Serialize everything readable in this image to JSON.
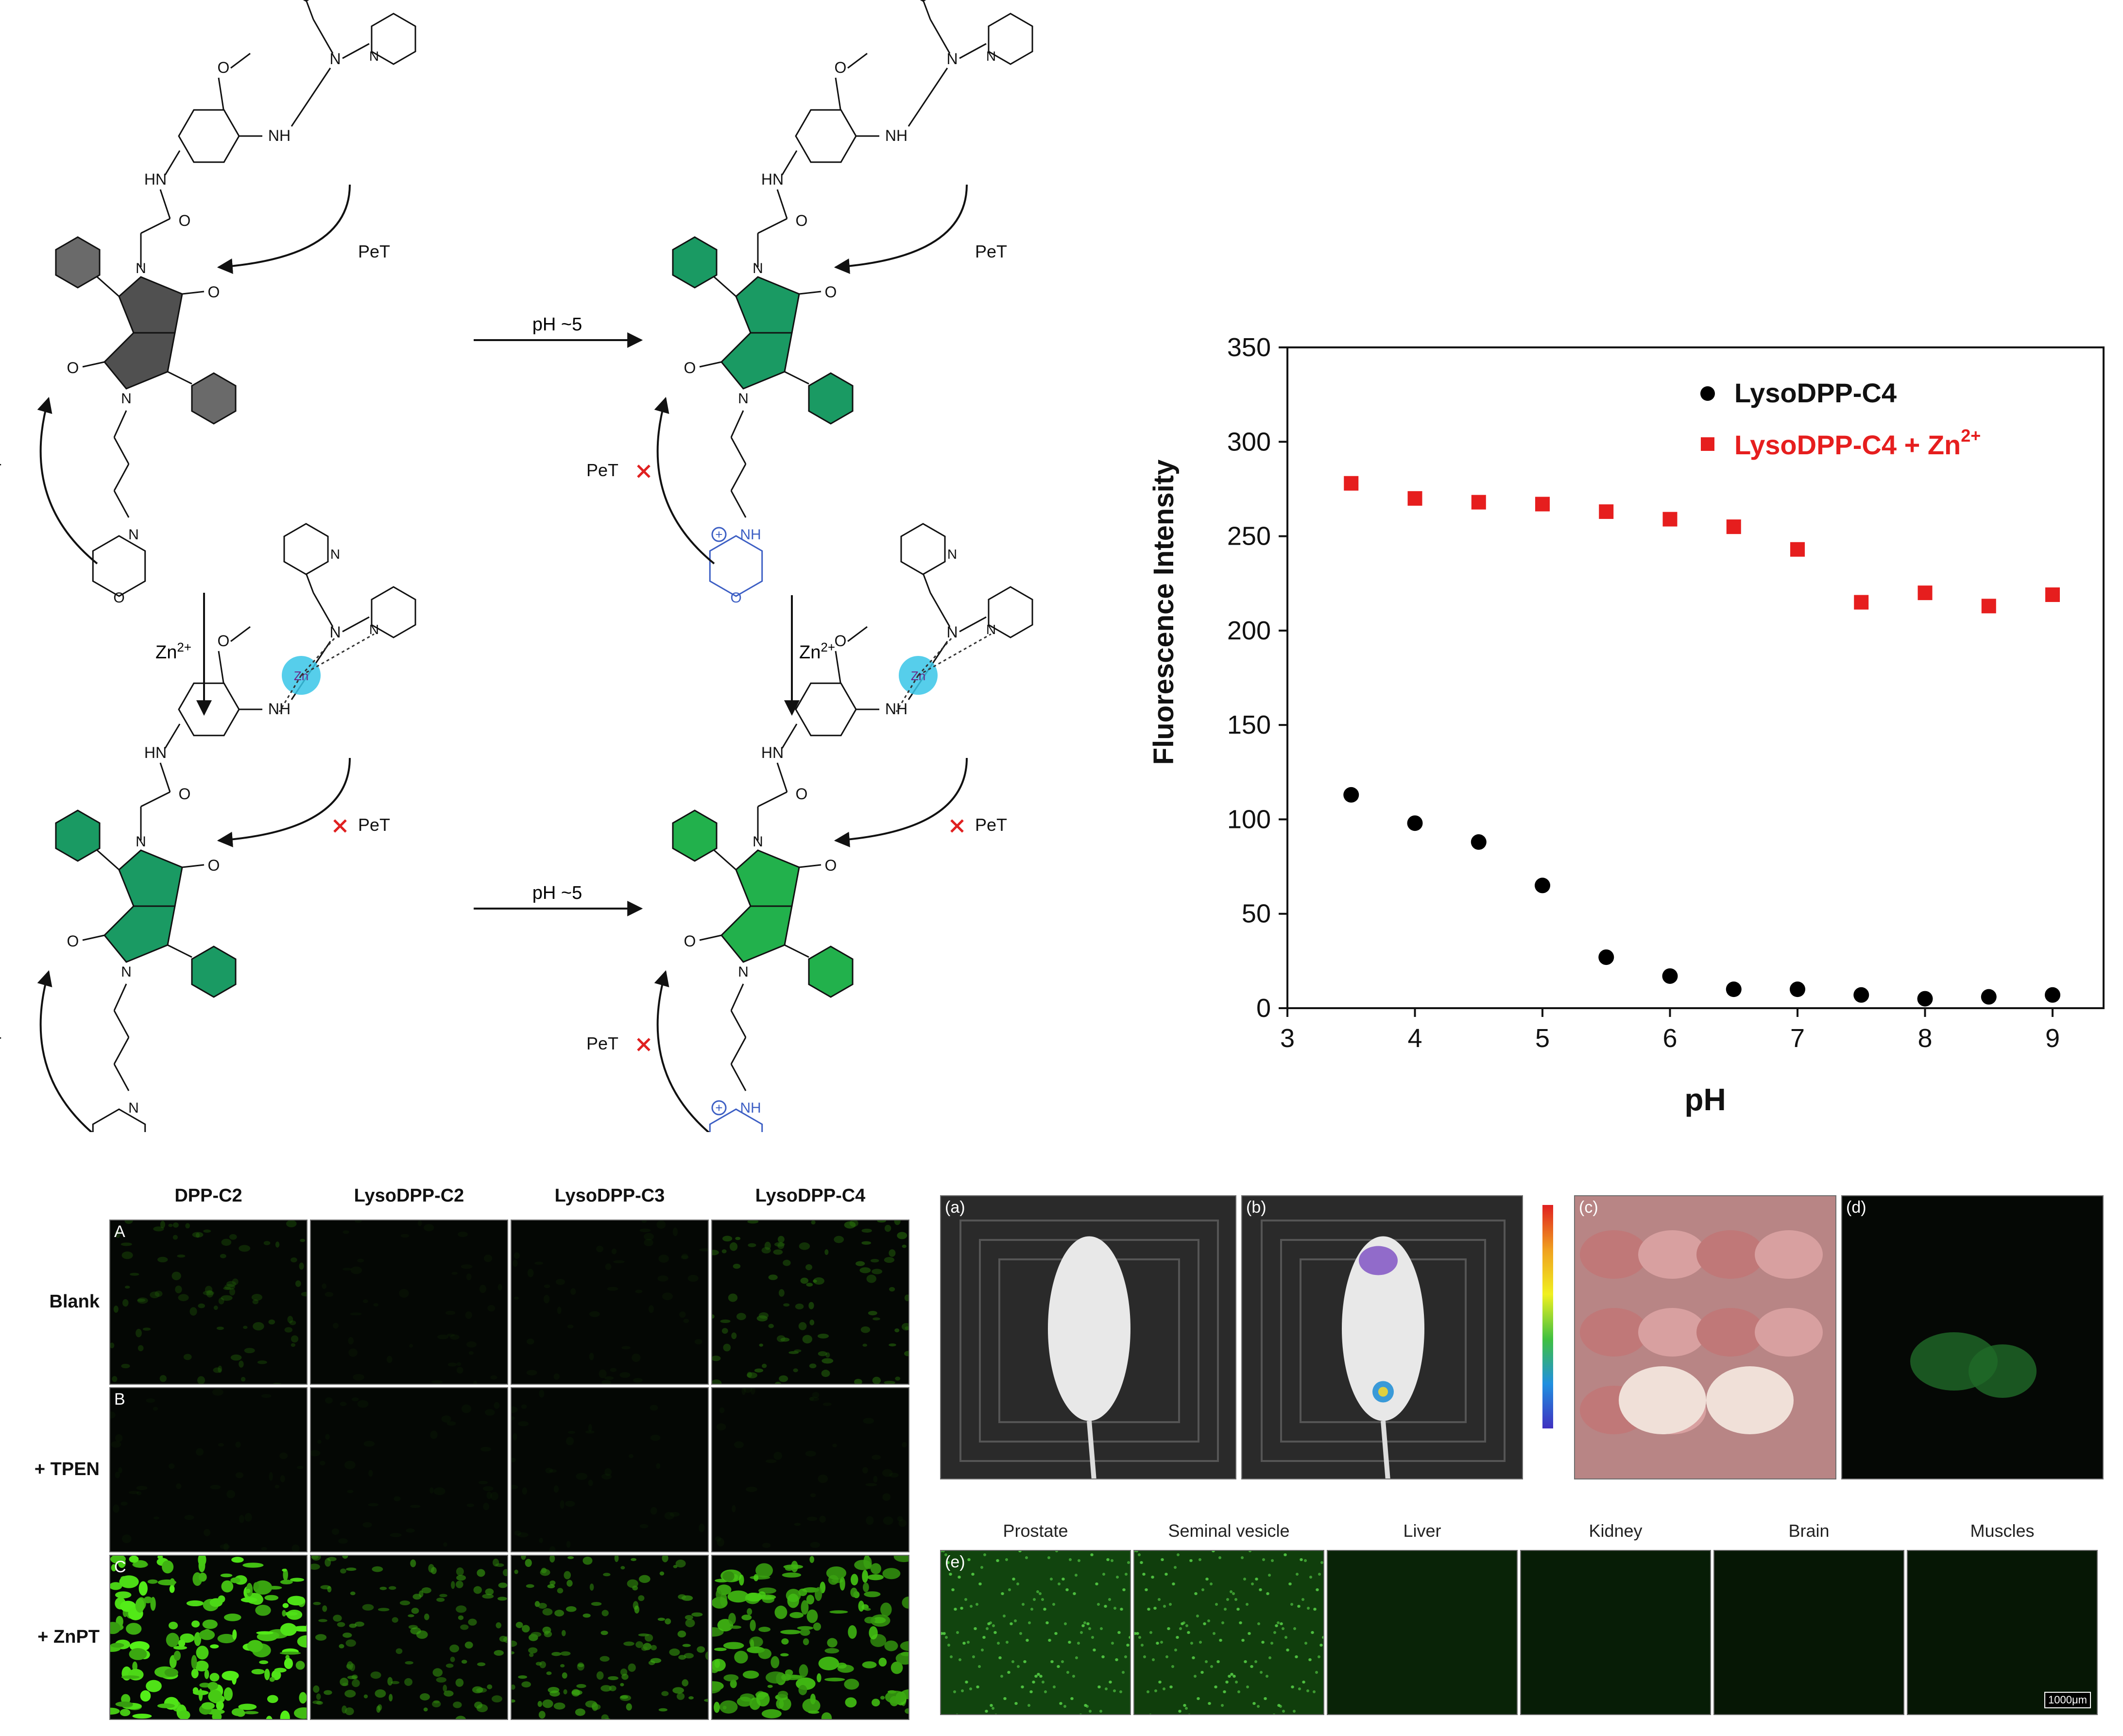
{
  "scheme": {
    "arrow_ph_top": "pH ~5",
    "arrow_ph_bottom": "pH ~5",
    "arrow_zn_left": "Zn2+",
    "arrow_zn_right": "Zn2+",
    "pet": "PeT",
    "atoms": {
      "n": "N",
      "nh": "NH",
      "hn": "HN",
      "o": "O",
      "nh_plus": "NH",
      "zn": "Zn"
    },
    "colors": {
      "core_off": "#505050",
      "core_on": "#1a9a63",
      "core_bright": "#22b14c",
      "protonated": "#3d5fc4",
      "block_mark": "#e02020",
      "zinc_ion": "#38c6e8"
    }
  },
  "chart_data": {
    "type": "scatter",
    "xlabel": "pH",
    "ylabel": "Fluorescence Intensity",
    "xlim": [
      3,
      9.4
    ],
    "ylim": [
      0,
      350
    ],
    "xticks": [
      3,
      4,
      5,
      6,
      7,
      8,
      9
    ],
    "yticks": [
      0,
      50,
      100,
      150,
      200,
      250,
      300,
      350
    ],
    "legend_position": "top-right",
    "series": [
      {
        "name": "LysoDPP-C4",
        "marker": "circle",
        "color": "#000000",
        "x": [
          3.5,
          4.0,
          4.5,
          5.0,
          5.5,
          6.0,
          6.5,
          7.0,
          7.5,
          8.0,
          8.5,
          9.0
        ],
        "y": [
          113,
          98,
          88,
          65,
          27,
          17,
          10,
          10,
          7,
          5,
          6,
          7
        ]
      },
      {
        "name": "LysoDPP-C4 + Zn2+",
        "marker": "square",
        "color": "#e61e1e",
        "x": [
          3.5,
          4.0,
          4.5,
          5.0,
          5.5,
          6.0,
          6.5,
          7.0,
          7.5,
          8.0,
          8.5,
          9.0
        ],
        "y": [
          278,
          270,
          268,
          267,
          263,
          259,
          255,
          243,
          215,
          220,
          213,
          219
        ]
      }
    ]
  },
  "legend": {
    "s1": "LysoDPP-C4",
    "s2_text": "LysoDPP-C4 + Zn",
    "s2_sup": "2+"
  },
  "cells": {
    "columns": [
      "DPP-C2",
      "LysoDPP-C2",
      "LysoDPP-C3",
      "LysoDPP-C4"
    ],
    "rows": [
      "Blank",
      "+ TPEN",
      "+ ZnPT"
    ],
    "row_letters": [
      "A",
      "B",
      "C"
    ],
    "brightness": [
      [
        0.35,
        0.08,
        0.12,
        0.45
      ],
      [
        0.05,
        0.04,
        0.04,
        0.06
      ],
      [
        1.0,
        0.6,
        0.65,
        0.85
      ]
    ]
  },
  "invivo": {
    "panels": [
      "(a)",
      "(b)",
      "(c)",
      "(d)"
    ],
    "tissue_letter": "(e)",
    "tissues": [
      "Prostate",
      "Seminal vesicle",
      "Liver",
      "Kidney",
      "Brain",
      "Muscles"
    ],
    "tissue_brightness": [
      0.8,
      0.7,
      0.25,
      0.15,
      0.05,
      0.05
    ],
    "scale_bar": "1000μm"
  }
}
